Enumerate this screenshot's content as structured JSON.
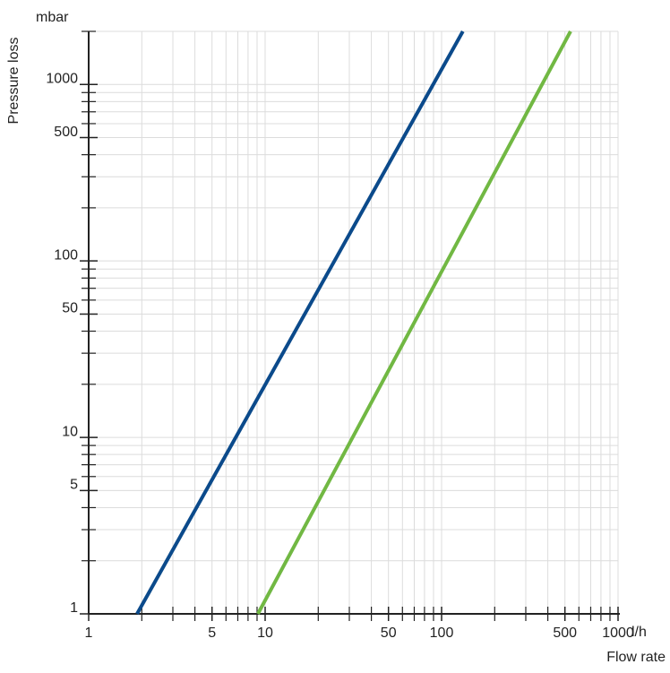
{
  "chart_data": {
    "type": "line",
    "y_label": "Pressure loss",
    "y_unit": "mbar",
    "x_label": "Flow rate",
    "x_unit": "l/h",
    "xscale": "log",
    "yscale": "log",
    "grid": true,
    "xlim": [
      1,
      1000
    ],
    "ylim": [
      1,
      2000
    ],
    "xticks": [
      1,
      5,
      10,
      50,
      100,
      500,
      1000
    ],
    "yticks": [
      1,
      5,
      10,
      50,
      100,
      500,
      1000
    ],
    "xminorticks": [
      2,
      3,
      4,
      6,
      7,
      8,
      9,
      20,
      30,
      40,
      60,
      70,
      80,
      90,
      200,
      300,
      400,
      600,
      700,
      800,
      900
    ],
    "yminorticks": [
      2,
      3,
      4,
      6,
      7,
      8,
      9,
      20,
      30,
      40,
      60,
      70,
      80,
      90,
      200,
      300,
      400,
      600,
      700,
      800,
      900,
      2000
    ],
    "series": [
      {
        "color": "#0b4a8b",
        "x": [
          1.88,
          132
        ],
        "values": [
          1,
          2000
        ]
      },
      {
        "color": "#71b843",
        "x": [
          9.1,
          538
        ],
        "values": [
          1,
          2000
        ]
      }
    ]
  }
}
